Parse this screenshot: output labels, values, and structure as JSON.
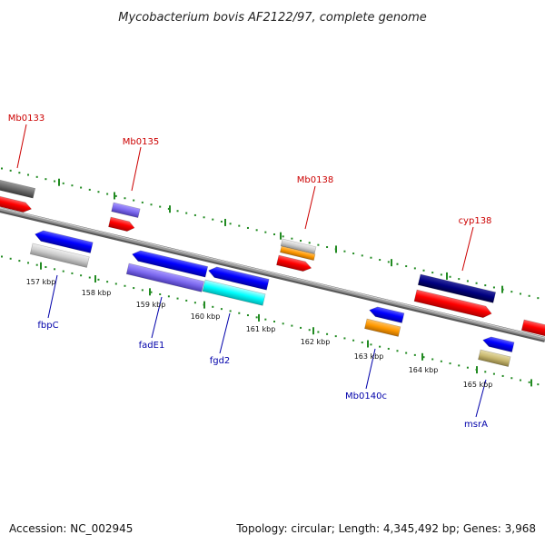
{
  "title": "Mycobacterium bovis AF2122/97, complete genome",
  "footer": {
    "accession": "Accession: NC_002945",
    "summary": "Topology: circular; Length: 4,345,492 bp; Genes: 3,968"
  },
  "ticks": [
    "157 kbp",
    "158 kbp",
    "159 kbp",
    "160 kbp",
    "161 kbp",
    "162 kbp",
    "163 kbp",
    "164 kbp",
    "165 kbp"
  ],
  "genes": [
    {
      "name": "Mb0133",
      "color": "#cc0000"
    },
    {
      "name": "Mb0135",
      "color": "#cc0000"
    },
    {
      "name": "Mb0138",
      "color": "#cc0000"
    },
    {
      "name": "cyp138",
      "color": "#cc0000"
    },
    {
      "name": "fbpC",
      "color": "#0000aa"
    },
    {
      "name": "fadE1",
      "color": "#0000aa"
    },
    {
      "name": "fgd2",
      "color": "#0000aa"
    },
    {
      "name": "Mb0140c",
      "color": "#0000aa"
    },
    {
      "name": "msrA",
      "color": "#0000aa"
    }
  ],
  "colors": {
    "backbone": "#8a8a8a",
    "dotted_guide": "#228b22",
    "cds": "#ff0000",
    "forward_gene": "#0000ff",
    "reverse_gene": "#0000ff",
    "rrna_gray": "#c8c8c8",
    "misc_purple": "#7b68ee",
    "orange": "#ff9900",
    "navy": "#000080",
    "cyan": "#00ffff",
    "khaki": "#c8b870"
  }
}
